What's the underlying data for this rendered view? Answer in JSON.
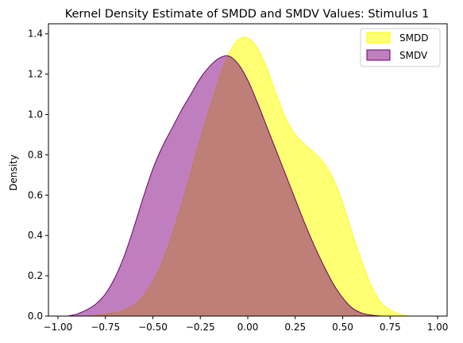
{
  "chart_data": {
    "type": "area",
    "title": "Kernel Density Estimate of SMDD and SMDV Values: Stimulus 1",
    "xlabel": "",
    "ylabel": "Density",
    "xlim": [
      -1.05,
      1.05
    ],
    "ylim": [
      0,
      1.45
    ],
    "xticks": [
      "−1.00",
      "−0.75",
      "−0.50",
      "−0.25",
      "0.00",
      "0.25",
      "0.50",
      "0.75",
      "1.00"
    ],
    "xtick_values": [
      -1.0,
      -0.75,
      -0.5,
      -0.25,
      0.0,
      0.25,
      0.5,
      0.75,
      1.0
    ],
    "yticks": [
      "0.0",
      "0.2",
      "0.4",
      "0.6",
      "0.8",
      "1.0",
      "1.2",
      "1.4"
    ],
    "ytick_values": [
      0.0,
      0.2,
      0.4,
      0.6,
      0.8,
      1.0,
      1.2,
      1.4
    ],
    "grid": false,
    "legend_position": "top-right",
    "series": [
      {
        "name": "SMDD",
        "fill": "#ffff00",
        "edge": "#ffff00",
        "alpha": 0.55,
        "x": [
          -0.85,
          -0.75,
          -0.65,
          -0.55,
          -0.45,
          -0.35,
          -0.25,
          -0.15,
          -0.1,
          -0.05,
          0.0,
          0.05,
          0.1,
          0.15,
          0.2,
          0.25,
          0.3,
          0.35,
          0.4,
          0.45,
          0.5,
          0.55,
          0.6,
          0.65,
          0.7,
          0.75,
          0.8,
          0.85,
          0.9
        ],
        "y": [
          0.0,
          0.01,
          0.03,
          0.1,
          0.27,
          0.55,
          0.88,
          1.18,
          1.3,
          1.37,
          1.38,
          1.33,
          1.23,
          1.1,
          0.98,
          0.9,
          0.85,
          0.81,
          0.76,
          0.68,
          0.56,
          0.41,
          0.27,
          0.15,
          0.07,
          0.03,
          0.01,
          0.0,
          0.0
        ]
      },
      {
        "name": "SMDV",
        "fill": "#800080",
        "edge": "#6a006a",
        "alpha": 0.5,
        "x": [
          -0.95,
          -0.9,
          -0.85,
          -0.8,
          -0.75,
          -0.7,
          -0.65,
          -0.6,
          -0.55,
          -0.5,
          -0.45,
          -0.4,
          -0.35,
          -0.3,
          -0.25,
          -0.2,
          -0.15,
          -0.1,
          -0.05,
          0.0,
          0.05,
          0.1,
          0.15,
          0.2,
          0.25,
          0.3,
          0.35,
          0.4,
          0.45,
          0.5,
          0.55,
          0.6,
          0.65,
          0.7
        ],
        "y": [
          0.0,
          0.01,
          0.03,
          0.06,
          0.11,
          0.19,
          0.3,
          0.44,
          0.59,
          0.73,
          0.84,
          0.93,
          1.02,
          1.1,
          1.18,
          1.24,
          1.28,
          1.29,
          1.25,
          1.17,
          1.06,
          0.94,
          0.82,
          0.7,
          0.58,
          0.46,
          0.35,
          0.25,
          0.16,
          0.09,
          0.04,
          0.015,
          0.005,
          0.0
        ]
      }
    ]
  }
}
